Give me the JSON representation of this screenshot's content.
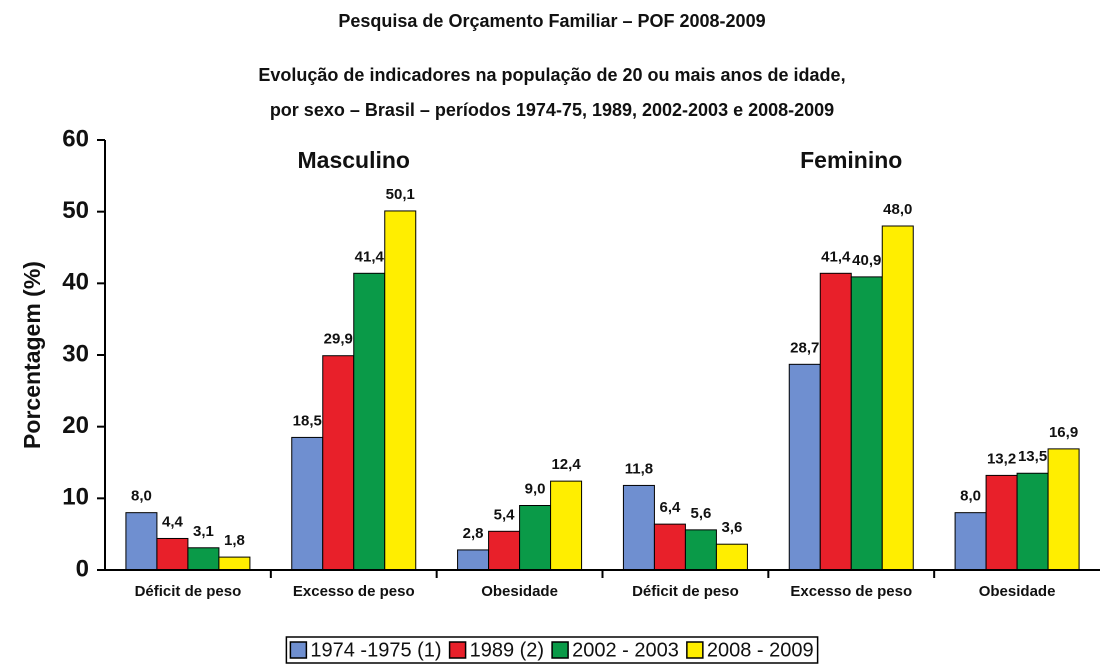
{
  "chart_data": {
    "type": "bar",
    "title": "Pesquisa de Orçamento Familiar – POF 2008-2009",
    "subtitle": [
      "Evolução de indicadores na população de 20 ou mais anos de idade,",
      "por sexo – Brasil – períodos 1974-75, 1989, 2002-2003 e 2008-2009"
    ],
    "y_label": "Porcentagem (%)",
    "annotations": [
      "Masculino",
      "Feminino"
    ],
    "categories": [
      "Déficit de peso",
      "Excesso de peso",
      "Obesidade",
      "Déficit de peso",
      "Excesso de peso",
      "Obesidade"
    ],
    "series": [
      {
        "name": "1974 -1975 (1)",
        "color": "#6f8fd0",
        "values": [
          8.0,
          18.5,
          2.8,
          11.8,
          28.7,
          8.0
        ],
        "value_labels": [
          "8,0",
          "18,5",
          "2,8",
          "11,8",
          "28,7",
          "8,0"
        ]
      },
      {
        "name": "1989 (2)",
        "color": "#e8202a",
        "values": [
          4.4,
          29.9,
          5.4,
          6.4,
          41.4,
          13.2
        ],
        "value_labels": [
          "4,4",
          "29,9",
          "5,4",
          "6,4",
          "41,4",
          "13,2"
        ]
      },
      {
        "name": "2002 - 2003",
        "color": "#0a9a48",
        "values": [
          3.1,
          41.4,
          9.0,
          5.6,
          40.9,
          13.5
        ],
        "value_labels": [
          "3,1",
          "41,4",
          "9,0",
          "5,6",
          "40,9",
          "13,5"
        ]
      },
      {
        "name": "2008 - 2009",
        "color": "#ffee00",
        "values": [
          1.8,
          50.1,
          12.4,
          3.6,
          48.0,
          16.9
        ],
        "value_labels": [
          "1,8",
          "50,1",
          "12,4",
          "3,6",
          "48,0",
          "16,9"
        ]
      }
    ],
    "ylim": [
      0,
      60
    ],
    "yticks": [
      0,
      10,
      20,
      30,
      40,
      50,
      60
    ],
    "grid": false,
    "legend": "bottom"
  }
}
